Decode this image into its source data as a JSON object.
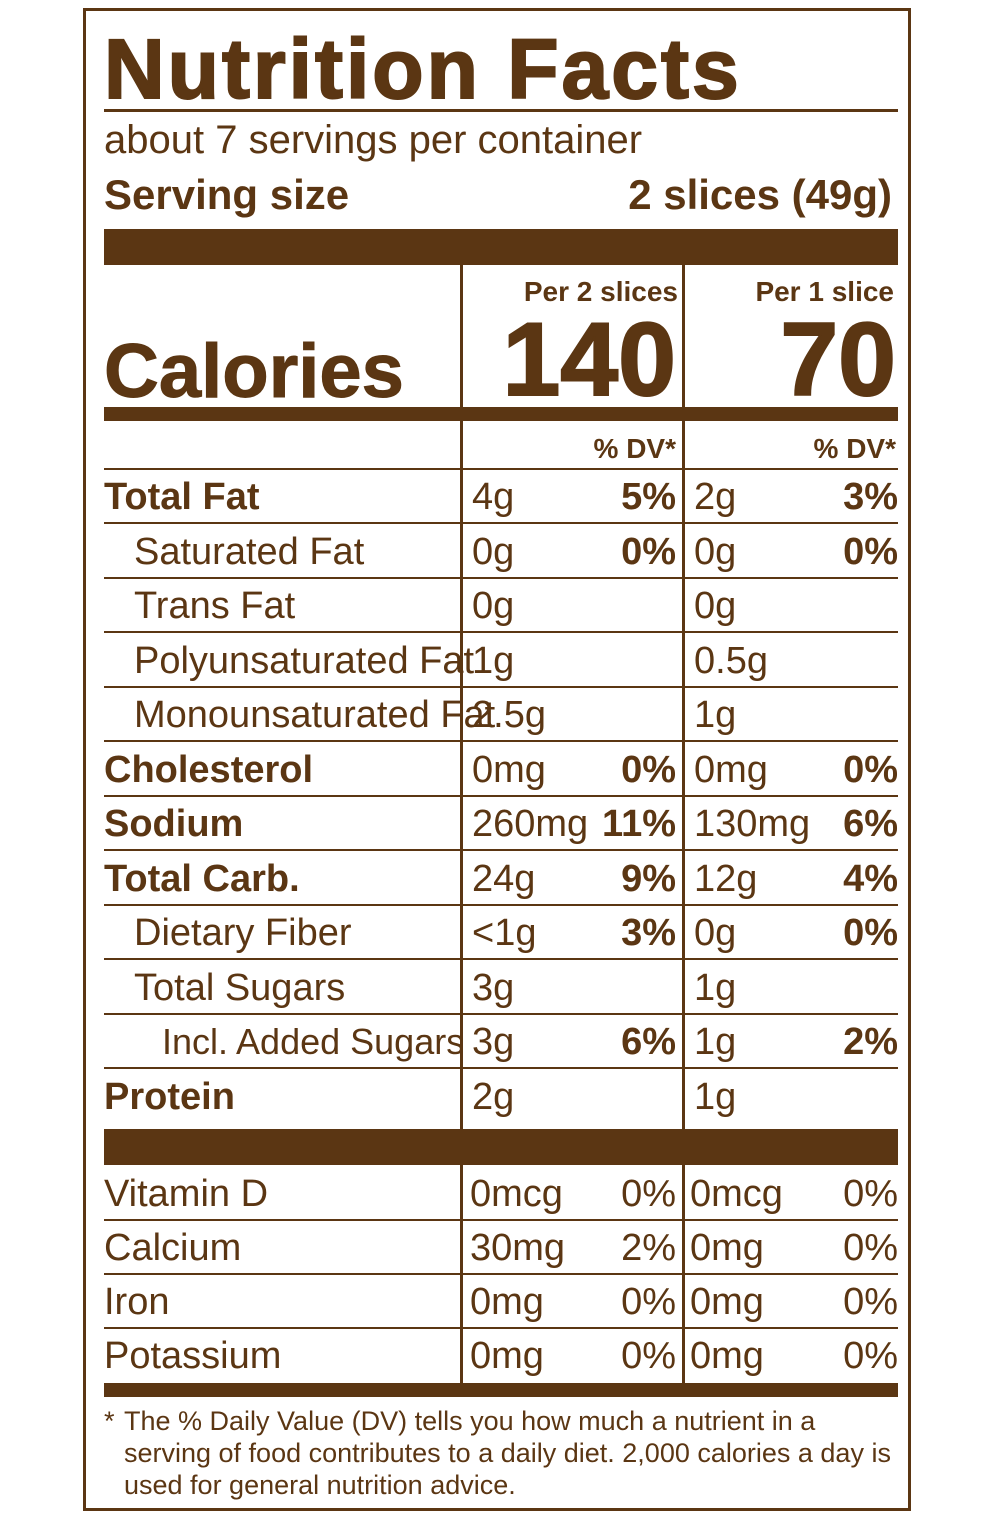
{
  "title": "Nutrition Facts",
  "servings_per_container": "about 7 servings per container",
  "serving_size_label": "Serving size",
  "serving_size_value": "2 slices (49g)",
  "calories_label": "Calories",
  "columns": [
    {
      "header": "Per 2 slices",
      "calories": "140",
      "dv_header": "% DV*"
    },
    {
      "header": "Per 1 slice",
      "calories": "70",
      "dv_header": "% DV*"
    }
  ],
  "nutrients": [
    {
      "name": "Total Fat",
      "bold": true,
      "indent": 0,
      "c1_amount": "4g",
      "c1_dv": "5%",
      "c2_amount": "2g",
      "c2_dv": "3%"
    },
    {
      "name": "Saturated Fat",
      "bold": false,
      "indent": 1,
      "c1_amount": "0g",
      "c1_dv": "0%",
      "c2_amount": "0g",
      "c2_dv": "0%"
    },
    {
      "name": "Trans Fat",
      "bold": false,
      "indent": 1,
      "c1_amount": "0g",
      "c1_dv": "",
      "c2_amount": "0g",
      "c2_dv": ""
    },
    {
      "name": "Polyunsaturated Fat",
      "bold": false,
      "indent": 1,
      "c1_amount": "1g",
      "c1_dv": "",
      "c2_amount": "0.5g",
      "c2_dv": ""
    },
    {
      "name": "Monounsaturated Fat",
      "bold": false,
      "indent": 1,
      "c1_amount": "2.5g",
      "c1_dv": "",
      "c2_amount": "1g",
      "c2_dv": ""
    },
    {
      "name": "Cholesterol",
      "bold": true,
      "indent": 0,
      "c1_amount": "0mg",
      "c1_dv": "0%",
      "c2_amount": "0mg",
      "c2_dv": "0%"
    },
    {
      "name": "Sodium",
      "bold": true,
      "indent": 0,
      "c1_amount": "260mg",
      "c1_dv": "11%",
      "c2_amount": "130mg",
      "c2_dv": "6%"
    },
    {
      "name": "Total Carb.",
      "bold": true,
      "indent": 0,
      "c1_amount": "24g",
      "c1_dv": "9%",
      "c2_amount": "12g",
      "c2_dv": "4%"
    },
    {
      "name": "Dietary Fiber",
      "bold": false,
      "indent": 1,
      "c1_amount": "<1g",
      "c1_dv": "3%",
      "c2_amount": "0g",
      "c2_dv": "0%"
    },
    {
      "name": "Total Sugars",
      "bold": false,
      "indent": 1,
      "c1_amount": "3g",
      "c1_dv": "",
      "c2_amount": "1g",
      "c2_dv": ""
    },
    {
      "name": "Incl. Added Sugars",
      "bold": false,
      "indent": 2,
      "c1_amount": "3g",
      "c1_dv": "6%",
      "c2_amount": "1g",
      "c2_dv": "2%"
    },
    {
      "name": "Protein",
      "bold": true,
      "indent": 0,
      "c1_amount": "2g",
      "c1_dv": "",
      "c2_amount": "1g",
      "c2_dv": ""
    }
  ],
  "vitamins": [
    {
      "name": "Vitamin D",
      "c1_amount": "0mcg",
      "c1_dv": "0%",
      "c2_amount": "0mcg",
      "c2_dv": "0%"
    },
    {
      "name": "Calcium",
      "c1_amount": "30mg",
      "c1_dv": "2%",
      "c2_amount": "0mg",
      "c2_dv": "0%"
    },
    {
      "name": "Iron",
      "c1_amount": "0mg",
      "c1_dv": "0%",
      "c2_amount": "0mg",
      "c2_dv": "0%"
    },
    {
      "name": "Potassium",
      "c1_amount": "0mg",
      "c1_dv": "0%",
      "c2_amount": "0mg",
      "c2_dv": "0%"
    }
  ],
  "footnote_star": "*",
  "footnote": "The % Daily Value (DV) tells you how much a nutrient in a serving of food contributes to a daily diet. 2,000 calories a day is used for general nutrition advice.",
  "colors": {
    "ink": "#5b3613",
    "background": "#ffffff"
  }
}
